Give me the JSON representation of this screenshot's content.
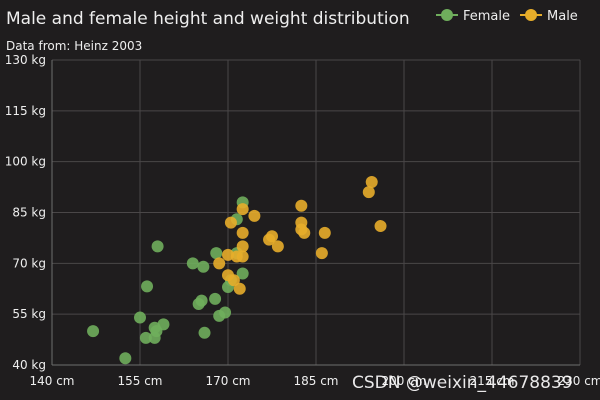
{
  "chart_data": {
    "type": "scatter",
    "title": "Male and female height and weight distribution",
    "subtitle": "Data from: Heinz 2003",
    "xlabel": "",
    "ylabel": "",
    "xlim": [
      140,
      230
    ],
    "ylim": [
      40,
      130
    ],
    "x_ticks": [
      "140 cm",
      "155 cm",
      "170 cm",
      "185 cm",
      "200 cm",
      "215 cm",
      "230 cm"
    ],
    "y_ticks": [
      "40 kg",
      "55 kg",
      "70 kg",
      "85 kg",
      "100 kg",
      "115 kg",
      "130 kg"
    ],
    "grid": true,
    "legend_position": "top-right",
    "series": [
      {
        "name": "Female",
        "color": "#6fae5c",
        "points": [
          [
            147,
            50
          ],
          [
            152.5,
            42
          ],
          [
            155,
            54
          ],
          [
            156,
            48
          ],
          [
            156.2,
            63.2
          ],
          [
            157.5,
            51
          ],
          [
            157.5,
            48
          ],
          [
            157.8,
            50
          ],
          [
            158,
            75
          ],
          [
            159,
            52
          ],
          [
            164,
            70
          ],
          [
            165,
            58
          ],
          [
            165.5,
            59
          ],
          [
            165.8,
            69
          ],
          [
            166,
            49.5
          ],
          [
            167.8,
            59.5
          ],
          [
            168,
            73
          ],
          [
            168.5,
            54.5
          ],
          [
            169.5,
            55.5
          ],
          [
            170,
            63
          ],
          [
            170.5,
            65
          ],
          [
            171.5,
            73
          ],
          [
            171.5,
            83
          ],
          [
            172.5,
            88
          ],
          [
            172.5,
            67
          ]
        ]
      },
      {
        "name": "Male",
        "color": "#e7ad2a",
        "points": [
          [
            168.5,
            70
          ],
          [
            170,
            66.5
          ],
          [
            170,
            72.5
          ],
          [
            170.5,
            82
          ],
          [
            171,
            65
          ],
          [
            171.5,
            72
          ],
          [
            172,
            62.5
          ],
          [
            172.5,
            72
          ],
          [
            172.5,
            86
          ],
          [
            172.5,
            79
          ],
          [
            172.5,
            75
          ],
          [
            174.5,
            84
          ],
          [
            177,
            77
          ],
          [
            177.5,
            78
          ],
          [
            178.5,
            75
          ],
          [
            182.5,
            87
          ],
          [
            182.5,
            82
          ],
          [
            182.5,
            80
          ],
          [
            183,
            79
          ],
          [
            186,
            73
          ],
          [
            186.5,
            79
          ],
          [
            194,
            91
          ],
          [
            194.5,
            94
          ],
          [
            196,
            81
          ]
        ]
      }
    ]
  },
  "watermark": "CSDN @weixin_44678839"
}
